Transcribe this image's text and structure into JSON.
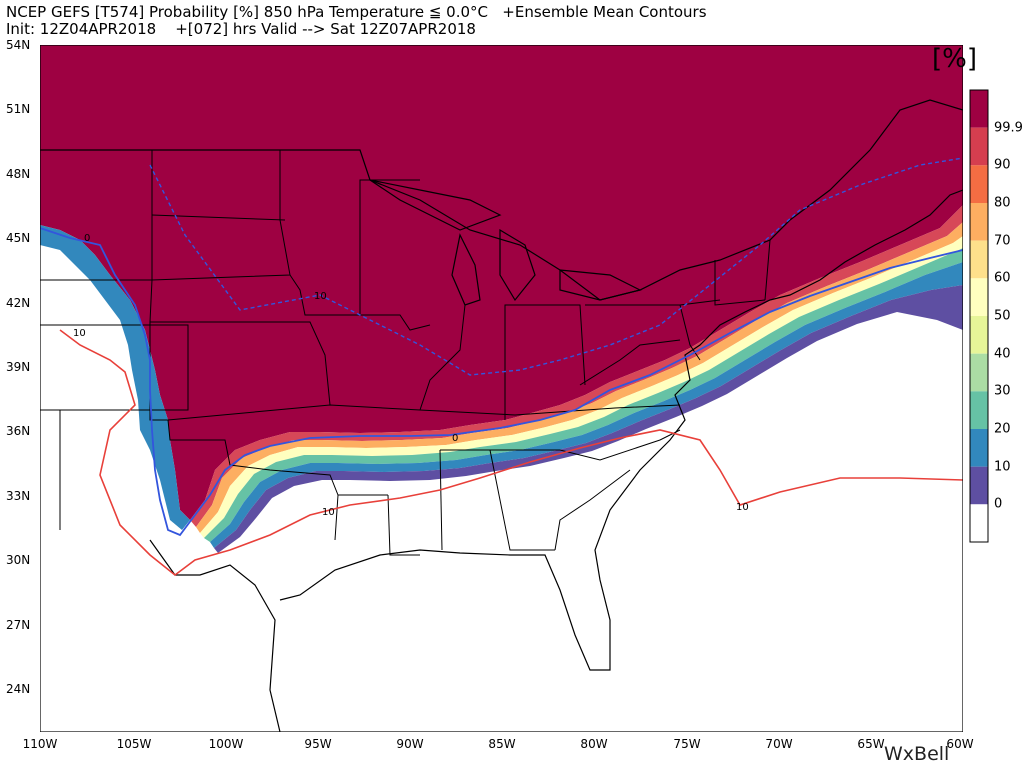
{
  "header": {
    "title_line1": "NCEP GEFS [T574] Probability [%] 850 hPa Temperature ≦ 0.0°C   +Ensemble Mean Contours",
    "title_line2": "Init: 12Z04APR2018    +[072] hrs Valid --> Sat 12Z07APR2018"
  },
  "map": {
    "lat_labels": [
      "54N",
      "51N",
      "48N",
      "45N",
      "42N",
      "39N",
      "36N",
      "33N",
      "30N",
      "27N",
      "24N"
    ],
    "lon_labels": [
      "110W",
      "105W",
      "100W",
      "95W",
      "90W",
      "85W",
      "80W",
      "75W",
      "70W",
      "65W",
      "60W"
    ],
    "contours": {
      "mean_zero_label": "0",
      "mean_ten_label": "10",
      "zero_color": "#3355dd",
      "ten_color": "#e8403a"
    }
  },
  "colorbar": {
    "unit": "[%]",
    "labels": [
      "99.9",
      "90",
      "80",
      "70",
      "60",
      "50",
      "40",
      "30",
      "20",
      "10",
      "0"
    ],
    "colors": [
      "#9e0142",
      "#d53e4f",
      "#f46d43",
      "#fdae61",
      "#fee08b",
      "#ffffbf",
      "#e6f598",
      "#abdda4",
      "#66c2a5",
      "#3288bd",
      "#5e4fa2",
      "#ffffff"
    ]
  },
  "branding": {
    "text": "WxBell"
  }
}
